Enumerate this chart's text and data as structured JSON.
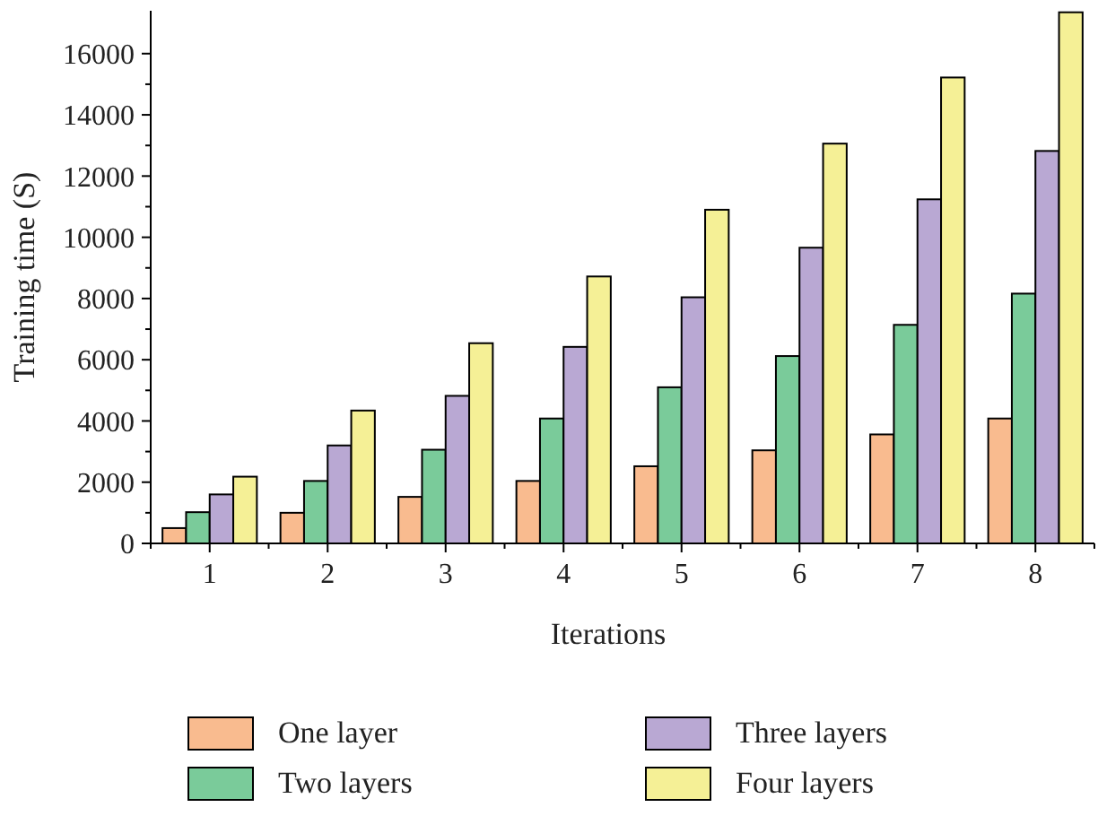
{
  "chart_data": {
    "type": "bar",
    "xlabel": "Iterations",
    "ylabel": "Training time (S)",
    "categories": [
      "1",
      "2",
      "3",
      "4",
      "5",
      "6",
      "7",
      "8"
    ],
    "series": [
      {
        "name": "One layer",
        "color": "#f9bb8f",
        "values": [
          500,
          1000,
          1520,
          2040,
          2520,
          3040,
          3560,
          4080
        ]
      },
      {
        "name": "Two layers",
        "color": "#7acb9a",
        "values": [
          1020,
          2040,
          3060,
          4080,
          5100,
          6120,
          7140,
          8160
        ]
      },
      {
        "name": "Three layers",
        "color": "#b9a8d3",
        "values": [
          1600,
          3200,
          4820,
          6420,
          8040,
          9660,
          11240,
          12820
        ]
      },
      {
        "name": "Four layers",
        "color": "#f5f096",
        "values": [
          2180,
          4340,
          6540,
          8720,
          10900,
          13060,
          15220,
          17350
        ]
      }
    ],
    "ylim": [
      0,
      17400
    ],
    "yticks": [
      0,
      2000,
      4000,
      6000,
      8000,
      10000,
      12000,
      14000,
      16000
    ],
    "grid": false,
    "legend": "bottom"
  }
}
